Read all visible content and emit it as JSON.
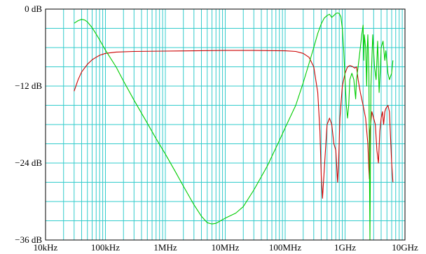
{
  "chart_data": {
    "type": "line",
    "title": "",
    "xlabel": "",
    "ylabel": "",
    "x_scale": "log",
    "xlim": [
      10000,
      10000000000
    ],
    "ylim": [
      -36,
      0
    ],
    "grid": true,
    "x_ticks": [
      {
        "value": 10000,
        "label": "10kHz"
      },
      {
        "value": 100000,
        "label": "100kHz"
      },
      {
        "value": 1000000,
        "label": "1MHz"
      },
      {
        "value": 10000000,
        "label": "10MHz"
      },
      {
        "value": 100000000,
        "label": "100MHz"
      },
      {
        "value": 1000000000,
        "label": "1GHz"
      },
      {
        "value": 10000000000,
        "label": "10GHz"
      }
    ],
    "y_ticks": [
      {
        "value": 0,
        "label": "0 dB"
      },
      {
        "value": -12,
        "label": "−12 dB"
      },
      {
        "value": -24,
        "label": "−24 dB"
      },
      {
        "value": -36,
        "label": "−36 dB"
      }
    ],
    "y_minor_step": 3,
    "colors": {
      "grid": "#33cccc",
      "frame": "#000000",
      "background": "#ffffff"
    },
    "series": [
      {
        "color": "#cc0000",
        "points": [
          [
            30000,
            -12.8
          ],
          [
            35000,
            -11.0
          ],
          [
            40000,
            -9.8
          ],
          [
            50000,
            -8.6
          ],
          [
            60000,
            -7.9
          ],
          [
            70000,
            -7.5
          ],
          [
            80000,
            -7.2
          ],
          [
            100000,
            -6.9
          ],
          [
            150000,
            -6.7
          ],
          [
            300000,
            -6.6
          ],
          [
            1000000,
            -6.55
          ],
          [
            3000000,
            -6.5
          ],
          [
            10000000,
            -6.45
          ],
          [
            30000000,
            -6.45
          ],
          [
            100000000,
            -6.5
          ],
          [
            150000000,
            -6.6
          ],
          [
            200000000,
            -6.9
          ],
          [
            250000000,
            -7.5
          ],
          [
            300000000,
            -9.0
          ],
          [
            350000000,
            -13.0
          ],
          [
            380000000,
            -19.0
          ],
          [
            400000000,
            -26.0
          ],
          [
            420000000,
            -29.5
          ],
          [
            450000000,
            -25.0
          ],
          [
            500000000,
            -18.0
          ],
          [
            550000000,
            -17.0
          ],
          [
            600000000,
            -18.0
          ],
          [
            650000000,
            -21.0
          ],
          [
            700000000,
            -22.0
          ],
          [
            750000000,
            -27.0
          ],
          [
            780000000,
            -24.0
          ],
          [
            820000000,
            -17.0
          ],
          [
            900000000,
            -12.0
          ],
          [
            1000000000,
            -10.0
          ],
          [
            1100000000,
            -9.0
          ],
          [
            1200000000,
            -8.8
          ],
          [
            1300000000,
            -8.9
          ],
          [
            1450000000,
            -9.2
          ],
          [
            1550000000,
            -9.0
          ],
          [
            1650000000,
            -11.0
          ],
          [
            1800000000,
            -13.0
          ],
          [
            2000000000,
            -15.0
          ],
          [
            2200000000,
            -17.0
          ],
          [
            2400000000,
            -21.0
          ],
          [
            2500000000,
            -25.0
          ],
          [
            2550000000,
            -26.5
          ],
          [
            2600000000,
            -19.0
          ],
          [
            2800000000,
            -16.0
          ],
          [
            3000000000,
            -17.0
          ],
          [
            3200000000,
            -18.0
          ],
          [
            3400000000,
            -22.0
          ],
          [
            3600000000,
            -24.0
          ],
          [
            3800000000,
            -19.0
          ],
          [
            4000000000,
            -17.0
          ],
          [
            4200000000,
            -16.0
          ],
          [
            4400000000,
            -18.0
          ],
          [
            4600000000,
            -16.0
          ],
          [
            4800000000,
            -15.5
          ],
          [
            5200000000,
            -15.0
          ],
          [
            5500000000,
            -16.0
          ],
          [
            6000000000,
            -24.0
          ],
          [
            6300000000,
            -27.0
          ]
        ]
      },
      {
        "color": "#00cc00",
        "points": [
          [
            30000,
            -2.2
          ],
          [
            35000,
            -1.8
          ],
          [
            40000,
            -1.6
          ],
          [
            45000,
            -1.7
          ],
          [
            50000,
            -2.0
          ],
          [
            60000,
            -2.9
          ],
          [
            70000,
            -3.9
          ],
          [
            80000,
            -4.8
          ],
          [
            100000,
            -6.4
          ],
          [
            150000,
            -9.0
          ],
          [
            200000,
            -11.2
          ],
          [
            300000,
            -14.2
          ],
          [
            500000,
            -17.8
          ],
          [
            700000,
            -20.2
          ],
          [
            1000000,
            -22.6
          ],
          [
            1500000,
            -25.5
          ],
          [
            2000000,
            -27.6
          ],
          [
            3000000,
            -30.5
          ],
          [
            4000000,
            -32.3
          ],
          [
            5000000,
            -33.3
          ],
          [
            6000000,
            -33.5
          ],
          [
            7000000,
            -33.4
          ],
          [
            8000000,
            -33.1
          ],
          [
            10000000,
            -32.6
          ],
          [
            15000000,
            -31.8
          ],
          [
            20000000,
            -30.8
          ],
          [
            30000000,
            -28.2
          ],
          [
            50000000,
            -24.5
          ],
          [
            80000000,
            -20.5
          ],
          [
            100000000,
            -18.5
          ],
          [
            150000000,
            -15.0
          ],
          [
            200000000,
            -11.5
          ],
          [
            250000000,
            -8.5
          ],
          [
            300000000,
            -6.0
          ],
          [
            350000000,
            -3.8
          ],
          [
            400000000,
            -2.3
          ],
          [
            450000000,
            -1.4
          ],
          [
            500000000,
            -1.0
          ],
          [
            550000000,
            -0.8
          ],
          [
            600000000,
            -1.3
          ],
          [
            650000000,
            -1.0
          ],
          [
            700000000,
            -0.7
          ],
          [
            750000000,
            -0.6
          ],
          [
            800000000,
            -0.7
          ],
          [
            850000000,
            -1.2
          ],
          [
            900000000,
            -3.0
          ],
          [
            950000000,
            -6.5
          ],
          [
            1000000000,
            -11.0
          ],
          [
            1050000000,
            -15.0
          ],
          [
            1100000000,
            -17.0
          ],
          [
            1150000000,
            -15.0
          ],
          [
            1200000000,
            -11.0
          ],
          [
            1300000000,
            -10.0
          ],
          [
            1400000000,
            -11.0
          ],
          [
            1500000000,
            -14.0
          ],
          [
            1550000000,
            -11.0
          ],
          [
            1650000000,
            -9.0
          ],
          [
            1800000000,
            -6.0
          ],
          [
            1900000000,
            -4.0
          ],
          [
            2000000000,
            -2.5
          ],
          [
            2050000000,
            -8.0
          ],
          [
            2100000000,
            -4.0
          ],
          [
            2200000000,
            -6.0
          ],
          [
            2300000000,
            -12.0
          ],
          [
            2350000000,
            -6.0
          ],
          [
            2400000000,
            -4.0
          ],
          [
            2500000000,
            -10.0
          ],
          [
            2550000000,
            -25.0
          ],
          [
            2600000000,
            -36.0
          ],
          [
            2650000000,
            -24.0
          ],
          [
            2700000000,
            -12.0
          ],
          [
            2900000000,
            -4.0
          ],
          [
            3100000000,
            -9.0
          ],
          [
            3300000000,
            -11.0
          ],
          [
            3500000000,
            -5.0
          ],
          [
            3700000000,
            -13.0
          ],
          [
            3900000000,
            -9.0
          ],
          [
            4000000000,
            -6.0
          ],
          [
            4300000000,
            -5.0
          ],
          [
            4600000000,
            -8.0
          ],
          [
            4800000000,
            -6.5
          ],
          [
            5200000000,
            -10.0
          ],
          [
            5500000000,
            -11.0
          ],
          [
            6000000000,
            -10.0
          ],
          [
            6300000000,
            -8.0
          ]
        ]
      }
    ]
  }
}
